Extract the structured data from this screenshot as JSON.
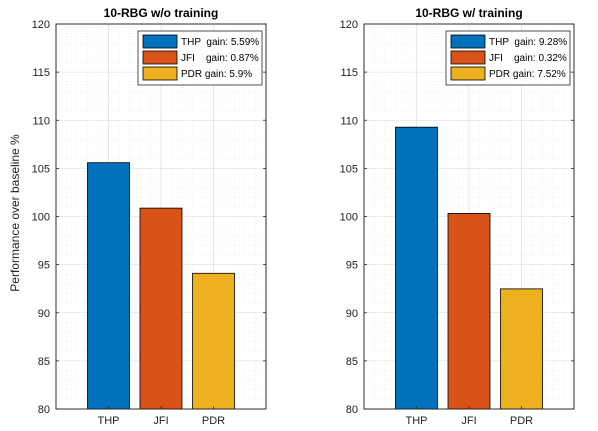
{
  "ylabel": "Performance over baseline %",
  "chart_data": [
    {
      "type": "bar",
      "title": "10-RBG w/o training",
      "categories": [
        "THP",
        "JFI",
        "PDR"
      ],
      "values": [
        105.59,
        100.87,
        94.1
      ],
      "ylim": [
        80,
        120
      ],
      "yticks": [
        80,
        85,
        90,
        95,
        100,
        105,
        110,
        115,
        120
      ],
      "grid": true,
      "legend_position": "top-right",
      "legend": [
        "THP  gain: 5.59%",
        "JFI    gain: 0.87%",
        "PDR gain: 5.9%"
      ],
      "colors": [
        "#0072BD",
        "#D95319",
        "#EDB120"
      ]
    },
    {
      "type": "bar",
      "title": "10-RBG w/ training",
      "categories": [
        "THP",
        "JFI",
        "PDR"
      ],
      "values": [
        109.28,
        100.32,
        92.48
      ],
      "ylim": [
        80,
        120
      ],
      "yticks": [
        80,
        85,
        90,
        95,
        100,
        105,
        110,
        115,
        120
      ],
      "grid": true,
      "legend_position": "top-right",
      "legend": [
        "THP  gain: 9.28%",
        "JFI    gain: 0.32%",
        "PDR gain: 7.52%"
      ],
      "colors": [
        "#0072BD",
        "#D95319",
        "#EDB120"
      ]
    }
  ]
}
